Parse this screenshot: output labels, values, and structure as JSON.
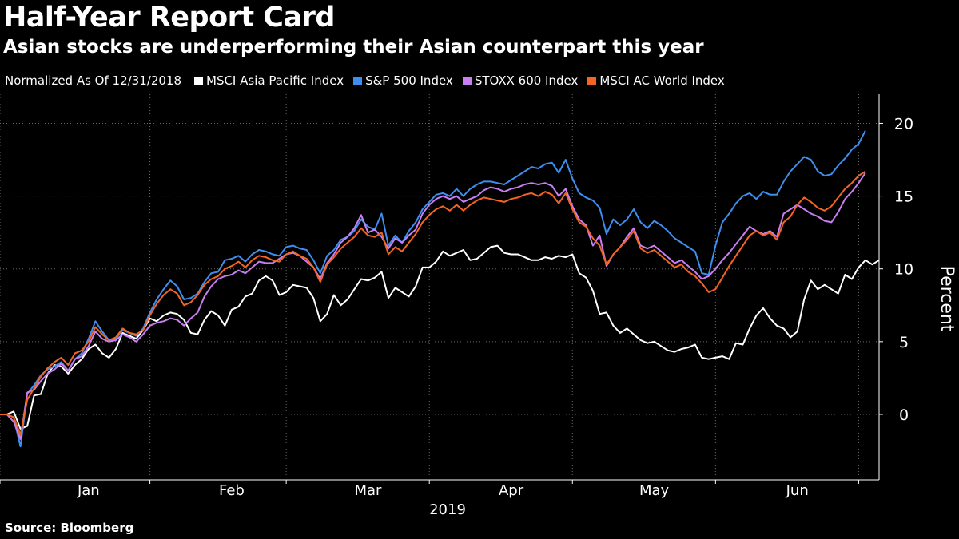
{
  "title": "Half-Year Report Card",
  "subtitle": "Asian stocks are underperforming their Asian counterpart this year",
  "legend_note": "Normalized As Of 12/31/2018",
  "source": "Source: Bloomberg",
  "chart_data": {
    "type": "line",
    "xlabel": "2019",
    "ylabel": "Percent",
    "ylim": [
      -4.5,
      22
    ],
    "yticks": [
      0,
      5,
      10,
      15,
      20
    ],
    "month_labels": [
      "Jan",
      "Feb",
      "Mar",
      "Apr",
      "May",
      "Jun"
    ],
    "month_label_positions": [
      13,
      34,
      54,
      75,
      96,
      117
    ],
    "month_boundaries": [
      0,
      22,
      42,
      63,
      84,
      105,
      126
    ],
    "grid": true,
    "legend_placement": "top",
    "series": [
      {
        "name": "MSCI Asia Pacific Index",
        "color": "#ffffff",
        "values": [
          0,
          0,
          0.2,
          -1.0,
          -0.8,
          1.3,
          1.4,
          2.8,
          3.4,
          3.3,
          2.8,
          3.4,
          3.8,
          4.5,
          4.8,
          4.2,
          3.9,
          4.5,
          5.6,
          5.4,
          5.2,
          5.8,
          6.6,
          6.4,
          6.8,
          7.0,
          6.9,
          6.5,
          5.6,
          5.5,
          6.5,
          7.1,
          6.8,
          6.1,
          7.2,
          7.4,
          8.1,
          8.3,
          9.2,
          9.5,
          9.2,
          8.2,
          8.4,
          8.9,
          8.8,
          8.7,
          8.0,
          6.4,
          6.9,
          8.2,
          7.5,
          7.9,
          8.6,
          9.3,
          9.2,
          9.4,
          9.8,
          8.0,
          8.7,
          8.4,
          8.1,
          8.8,
          10.1,
          10.1,
          10.5,
          11.2,
          10.9,
          11.1,
          11.3,
          10.6,
          10.7,
          11.1,
          11.5,
          11.6,
          11.1,
          11.0,
          11.0,
          10.8,
          10.6,
          10.6,
          10.8,
          10.7,
          10.9,
          10.8,
          11.0,
          9.7,
          9.4,
          8.5,
          6.9,
          7.0,
          6.1,
          5.6,
          5.9,
          5.5,
          5.1,
          4.9,
          5.0,
          4.7,
          4.4,
          4.3,
          4.5,
          4.6,
          4.8,
          3.9,
          3.8,
          3.9,
          4.0,
          3.8,
          4.9,
          4.8,
          5.9,
          6.8,
          7.3,
          6.6,
          6.1,
          5.9,
          5.3,
          5.7,
          7.9,
          9.2,
          8.6,
          8.9,
          8.6,
          8.3,
          9.6,
          9.3,
          10.1,
          10.6,
          10.3,
          10.6
        ]
      },
      {
        "name": "S&P 500 Index",
        "color": "#3d8ef0",
        "values": [
          0,
          0,
          -0.2,
          -2.2,
          1.4,
          2.0,
          2.7,
          3.1,
          3.3,
          3.6,
          3.0,
          3.8,
          4.2,
          5.2,
          6.4,
          5.7,
          5.1,
          5.2,
          5.8,
          5.6,
          5.4,
          5.9,
          7.0,
          7.9,
          8.6,
          9.2,
          8.8,
          7.9,
          8.0,
          8.3,
          9.1,
          9.7,
          9.8,
          10.6,
          10.7,
          10.9,
          10.5,
          11.0,
          11.3,
          11.2,
          11.0,
          10.9,
          11.5,
          11.6,
          11.4,
          11.3,
          10.6,
          9.7,
          10.9,
          11.3,
          12.0,
          12.2,
          12.6,
          13.4,
          12.9,
          12.7,
          13.8,
          11.6,
          12.3,
          11.8,
          12.6,
          13.2,
          14.1,
          14.6,
          15.1,
          15.2,
          15.0,
          15.5,
          15.0,
          15.5,
          15.8,
          16.0,
          16.0,
          15.9,
          15.8,
          16.1,
          16.4,
          16.7,
          17.0,
          16.9,
          17.2,
          17.3,
          16.6,
          17.5,
          16.2,
          15.2,
          14.9,
          14.7,
          14.2,
          12.4,
          13.4,
          13.0,
          13.4,
          14.1,
          13.2,
          12.8,
          13.3,
          13.0,
          12.6,
          12.1,
          11.8,
          11.5,
          11.2,
          9.7,
          9.6,
          11.6,
          13.2,
          13.8,
          14.5,
          15.0,
          15.2,
          14.8,
          15.3,
          15.1,
          15.1,
          16.0,
          16.7,
          17.2,
          17.7,
          17.5,
          16.7,
          16.4,
          16.5,
          17.1,
          17.6,
          18.2,
          18.6,
          19.5
        ]
      },
      {
        "name": "STOXX 600 Index",
        "color": "#c97ef2",
        "values": [
          0,
          0,
          -0.5,
          -1.7,
          1.5,
          1.7,
          2.3,
          2.8,
          3.1,
          3.5,
          3.0,
          3.8,
          4.0,
          4.7,
          5.7,
          5.2,
          5.0,
          5.1,
          5.5,
          5.3,
          5.0,
          5.5,
          6.1,
          6.3,
          6.4,
          6.6,
          6.5,
          6.1,
          6.6,
          7.0,
          8.1,
          8.8,
          9.3,
          9.5,
          9.6,
          9.9,
          9.7,
          10.1,
          10.5,
          10.4,
          10.4,
          10.7,
          11.0,
          11.1,
          10.9,
          10.5,
          10.1,
          9.3,
          10.4,
          11.0,
          11.8,
          12.2,
          12.8,
          13.7,
          12.5,
          12.7,
          12.2,
          11.4,
          12.1,
          11.8,
          12.3,
          12.7,
          13.8,
          14.4,
          14.8,
          15.0,
          14.8,
          15.0,
          14.6,
          14.8,
          15.0,
          15.4,
          15.6,
          15.5,
          15.3,
          15.5,
          15.6,
          15.8,
          15.9,
          15.8,
          15.9,
          15.7,
          15.0,
          15.5,
          14.3,
          13.4,
          13.0,
          11.6,
          12.3,
          10.2,
          11.0,
          11.5,
          12.2,
          12.8,
          11.6,
          11.4,
          11.6,
          11.2,
          10.8,
          10.4,
          10.6,
          10.2,
          9.8,
          9.3,
          9.5,
          10.0,
          10.6,
          11.1,
          11.7,
          12.3,
          12.9,
          12.6,
          12.4,
          12.6,
          12.2,
          13.8,
          14.1,
          14.4,
          14.1,
          13.8,
          13.6,
          13.3,
          13.2,
          13.9,
          14.8,
          15.3,
          15.9,
          16.6
        ]
      },
      {
        "name": "MSCI AC World Index",
        "color": "#f26522",
        "values": [
          0,
          0,
          -0.2,
          -1.4,
          1.0,
          1.8,
          2.6,
          3.2,
          3.6,
          3.9,
          3.4,
          4.2,
          4.4,
          5.0,
          6.0,
          5.5,
          5.1,
          5.3,
          5.9,
          5.6,
          5.5,
          5.8,
          6.8,
          7.6,
          8.2,
          8.6,
          8.3,
          7.5,
          7.7,
          8.2,
          8.9,
          9.3,
          9.5,
          10.0,
          10.2,
          10.5,
          10.1,
          10.6,
          10.9,
          10.8,
          10.6,
          10.5,
          11.0,
          11.2,
          10.9,
          10.7,
          10.1,
          9.1,
          10.3,
          10.8,
          11.4,
          11.8,
          12.2,
          12.8,
          12.3,
          12.2,
          12.5,
          11.0,
          11.5,
          11.2,
          11.8,
          12.4,
          13.2,
          13.7,
          14.1,
          14.3,
          14.0,
          14.4,
          14.0,
          14.4,
          14.7,
          14.9,
          14.8,
          14.7,
          14.6,
          14.8,
          14.9,
          15.1,
          15.2,
          15.0,
          15.3,
          15.1,
          14.5,
          15.2,
          14.1,
          13.2,
          12.9,
          12.1,
          11.6,
          10.3,
          11.0,
          11.5,
          12.0,
          12.6,
          11.4,
          11.1,
          11.3,
          10.9,
          10.5,
          10.1,
          10.3,
          9.8,
          9.5,
          9.0,
          8.4,
          8.6,
          9.4,
          10.2,
          10.9,
          11.6,
          12.3,
          12.6,
          12.3,
          12.5,
          12.0,
          13.2,
          13.6,
          14.4,
          14.9,
          14.6,
          14.2,
          14.0,
          14.3,
          14.9,
          15.5,
          15.9,
          16.4,
          16.7
        ]
      }
    ]
  }
}
